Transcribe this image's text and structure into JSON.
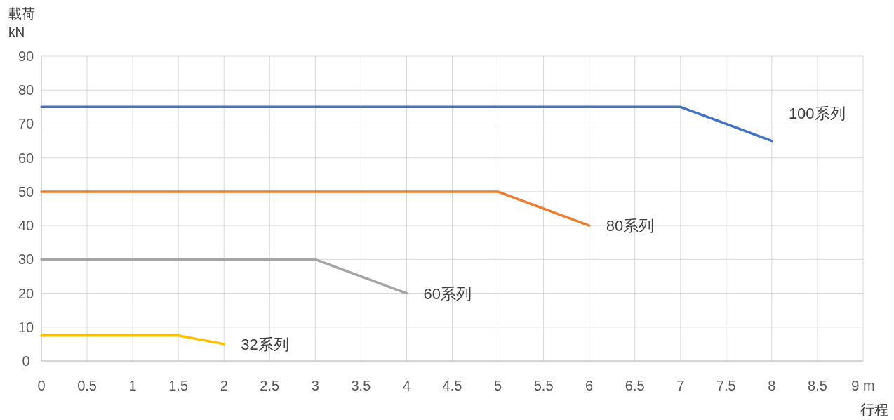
{
  "chart_data": {
    "type": "line",
    "xlabel": "行程",
    "ylabel": "載荷 kN",
    "xlim": [
      0,
      9
    ],
    "ylim": [
      0,
      90
    ],
    "xticks": [
      0,
      0.5,
      1,
      1.5,
      2,
      2.5,
      3,
      3.5,
      4,
      4.5,
      5,
      5.5,
      6,
      6.5,
      7,
      7.5,
      8,
      8.5,
      {
        "value": 9,
        "label": "9 m"
      }
    ],
    "yticks": [
      0,
      10,
      20,
      30,
      40,
      50,
      60,
      70,
      80,
      90
    ],
    "grid": true,
    "marker": "none",
    "line_style": "solid",
    "series": [
      {
        "name": "100系列",
        "color": "#4472c4",
        "x": [
          0,
          7,
          8
        ],
        "values": [
          75,
          75,
          65
        ]
      },
      {
        "name": "80系列",
        "color": "#ed7d31",
        "x": [
          0,
          5,
          6
        ],
        "values": [
          50,
          50,
          40
        ]
      },
      {
        "name": "60系列",
        "color": "#a5a5a5",
        "x": [
          0,
          3,
          4
        ],
        "values": [
          30,
          30,
          20
        ]
      },
      {
        "name": "32系列",
        "color": "#ffc000",
        "x": [
          0,
          1.5,
          2
        ],
        "values": [
          7.5,
          7.5,
          5
        ]
      }
    ]
  }
}
